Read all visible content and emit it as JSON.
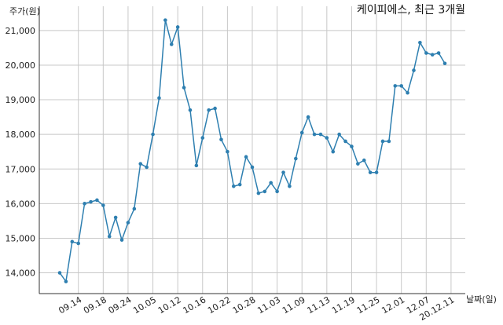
{
  "chart_data": {
    "type": "line",
    "title": "케이피에스, 최근 3개월",
    "xlabel": "날짜(일)",
    "ylabel": "주가(원)",
    "ylim": [
      13400,
      21700
    ],
    "y_ticks": [
      14000,
      15000,
      16000,
      17000,
      18000,
      19000,
      20000,
      21000
    ],
    "y_tick_labels": [
      "14,000",
      "15,000",
      "16,000",
      "17,000",
      "18,000",
      "19,000",
      "20,000",
      "21,000"
    ],
    "x_tick_labels": [
      "09.14",
      "09.18",
      "09.24",
      "10.05",
      "10.12",
      "10.16",
      "10.22",
      "10.28",
      "11.03",
      "11.09",
      "11.13",
      "11.19",
      "11.25",
      "12.01",
      "12.07",
      "20.12.11"
    ],
    "x_tick_index": [
      3,
      7,
      11,
      15,
      19,
      23,
      27,
      31,
      35,
      39,
      43,
      47,
      51,
      55,
      59,
      63
    ],
    "grid": true,
    "line_color": "#2e7fb0",
    "series": [
      {
        "values": [
          14000,
          13750,
          14900,
          14850,
          16000,
          16050,
          16100,
          15950,
          15050,
          15600,
          14950,
          15450,
          15850,
          17150,
          17050,
          18000,
          19050,
          21300,
          20600,
          21100,
          19350,
          18700,
          17100,
          17900,
          18700,
          18750,
          17850,
          17500,
          16500,
          16550,
          17350,
          17050,
          16300,
          16350,
          16600,
          16350,
          16900,
          16500,
          17300,
          18050,
          18500,
          18000,
          18000,
          17900,
          17500,
          18000,
          17800,
          17650,
          17150,
          17250,
          16900,
          16900,
          17800,
          17800,
          19400,
          19400,
          19200,
          19850,
          20650,
          20350,
          20300,
          20350,
          20050
        ]
      }
    ]
  }
}
